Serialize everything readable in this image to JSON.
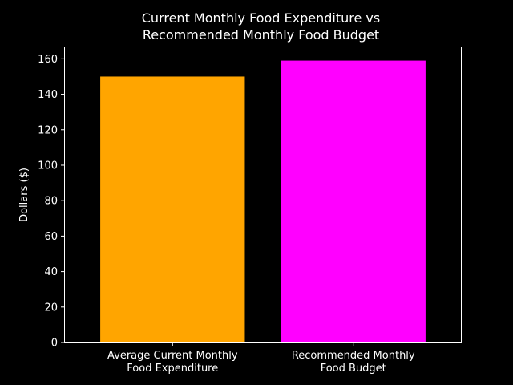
{
  "chart_data": {
    "type": "bar",
    "title_lines": [
      "Current Monthly Food Expenditure vs",
      "Recommended Monthly Food Budget"
    ],
    "xlabel": "",
    "ylabel": "Dollars ($)",
    "ylim": [
      0,
      166.95
    ],
    "yticks": [
      0,
      20,
      40,
      60,
      80,
      100,
      120,
      140,
      160
    ],
    "grid": false,
    "categories": [
      {
        "lines": [
          "Average Current Monthly",
          "Food Expenditure"
        ]
      },
      {
        "lines": [
          "Recommended Monthly",
          "Food Budget"
        ]
      }
    ],
    "values": [
      150,
      159
    ],
    "colors": [
      "#ffa500",
      "#ff00ff"
    ]
  },
  "style": {
    "background": "#000000",
    "axis_color": "#ffffff",
    "text_color": "#ffffff"
  }
}
